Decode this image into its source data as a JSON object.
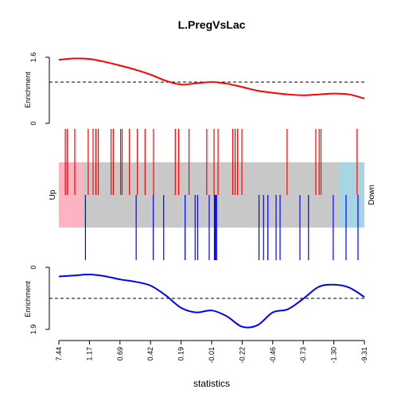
{
  "chart_data": {
    "type": "barcode-enrichment",
    "title": "L.PregVsLac",
    "xlabel": "statistics",
    "x_tick_labels": [
      "7.44",
      "1.17",
      "0.69",
      "0.42",
      "0.19",
      "-0.01",
      "-0.22",
      "-0.46",
      "-0.73",
      "-1.30",
      "-9.31"
    ],
    "barcode": {
      "left_label": "Up",
      "right_label": "Down",
      "up_fraction": 0.077,
      "down_fraction": 0.085,
      "colors": {
        "middle": "#c8c8c8",
        "up": "#ffb2c1",
        "down": "#a8d5e2",
        "up_lines": "#ff0000",
        "down_lines": "#0000ff"
      },
      "up_positions": [
        0.021,
        0.028,
        0.052,
        0.096,
        0.112,
        0.121,
        0.129,
        0.171,
        0.178,
        0.202,
        0.207,
        0.231,
        0.257,
        0.282,
        0.31,
        0.381,
        0.392,
        0.426,
        0.484,
        0.508,
        0.521,
        0.569,
        0.577,
        0.585,
        0.599,
        0.747,
        0.841,
        0.852,
        0.858,
        0.976
      ],
      "down_positions": [
        0.087,
        0.253,
        0.309,
        0.343,
        0.413,
        0.446,
        0.454,
        0.492,
        0.509,
        0.511,
        0.514,
        0.516,
        0.655,
        0.67,
        0.684,
        0.711,
        0.724,
        0.789,
        0.817,
        0.898,
        0.94,
        0.979
      ]
    },
    "series": [
      {
        "name": "Up",
        "color": "#ff0000",
        "ylim": [
          0,
          1.6
        ],
        "y_tick_labels": [
          "0",
          "1.6"
        ],
        "ylabel": "Enrichment",
        "reference": 1.0,
        "x": [
          0,
          0.05,
          0.1,
          0.15,
          0.2,
          0.25,
          0.3,
          0.35,
          0.4,
          0.45,
          0.5,
          0.55,
          0.6,
          0.65,
          0.7,
          0.75,
          0.8,
          0.85,
          0.9,
          0.95,
          1
        ],
        "values": [
          1.54,
          1.57,
          1.56,
          1.49,
          1.4,
          1.3,
          1.18,
          1.03,
          0.94,
          0.97,
          1.0,
          0.96,
          0.88,
          0.79,
          0.74,
          0.7,
          0.68,
          0.7,
          0.72,
          0.7,
          0.6
        ]
      },
      {
        "name": "Down",
        "color": "#0000ff",
        "ylim": [
          0,
          1.9
        ],
        "inverted": true,
        "y_tick_labels": [
          "0",
          "1.9"
        ],
        "ylabel": "Enrichment",
        "reference": 0.95,
        "x": [
          0,
          0.05,
          0.1,
          0.15,
          0.2,
          0.25,
          0.3,
          0.35,
          0.4,
          0.45,
          0.5,
          0.55,
          0.6,
          0.65,
          0.7,
          0.75,
          0.8,
          0.85,
          0.9,
          0.95,
          1
        ],
        "values": [
          0.28,
          0.25,
          0.22,
          0.27,
          0.37,
          0.44,
          0.56,
          0.86,
          1.24,
          1.38,
          1.32,
          1.5,
          1.82,
          1.77,
          1.38,
          1.28,
          0.96,
          0.6,
          0.53,
          0.62,
          0.91
        ]
      }
    ]
  }
}
